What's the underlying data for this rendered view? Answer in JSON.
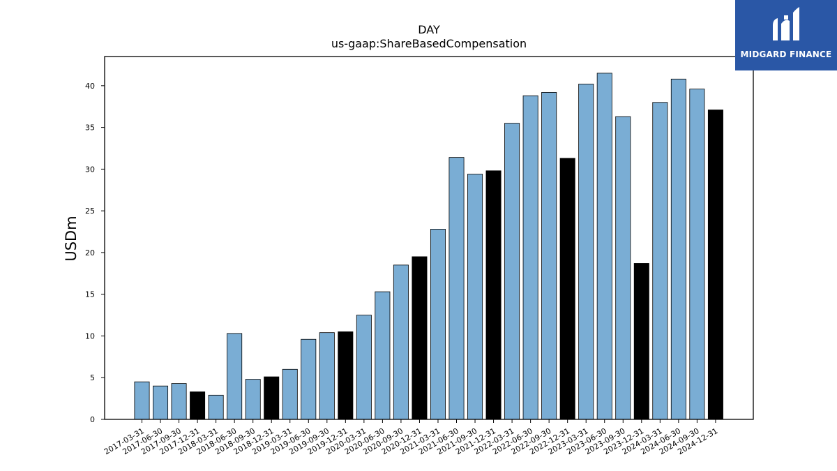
{
  "brand": {
    "name": "MIDGARD FINANCE",
    "color": "#2a57a6"
  },
  "chart_data": {
    "type": "bar",
    "title": "DAY",
    "subtitle": "us-gaap:ShareBasedCompensation",
    "xlabel": "",
    "ylabel": "USDm",
    "ylim": [
      0,
      43.5
    ],
    "yticks": [
      0,
      5,
      10,
      15,
      20,
      25,
      30,
      35,
      40
    ],
    "grid": false,
    "colors": {
      "quarter": "#7aadd4",
      "year_end": "#000000",
      "edge": "#000000"
    },
    "categories": [
      "2017-03-31",
      "2017-06-30",
      "2017-09-30",
      "2017-12-31",
      "2018-03-31",
      "2018-06-30",
      "2018-09-30",
      "2018-12-31",
      "2019-03-31",
      "2019-06-30",
      "2019-09-30",
      "2019-12-31",
      "2020-03-31",
      "2020-06-30",
      "2020-09-30",
      "2020-12-31",
      "2021-03-31",
      "2021-06-30",
      "2021-09-30",
      "2021-12-31",
      "2022-03-31",
      "2022-06-30",
      "2022-09-30",
      "2022-12-31",
      "2023-03-31",
      "2023-06-30",
      "2023-09-30",
      "2023-12-31",
      "2024-03-31",
      "2024-06-30",
      "2024-09-30",
      "2024-12-31"
    ],
    "values": [
      4.5,
      4.0,
      4.3,
      3.3,
      2.9,
      10.3,
      4.8,
      5.1,
      6.0,
      9.6,
      10.4,
      10.5,
      12.5,
      15.3,
      18.5,
      19.5,
      22.8,
      31.4,
      29.4,
      29.8,
      35.5,
      38.8,
      39.2,
      31.3,
      40.2,
      41.5,
      36.3,
      18.7,
      38.0,
      40.8,
      39.6,
      37.1
    ]
  }
}
